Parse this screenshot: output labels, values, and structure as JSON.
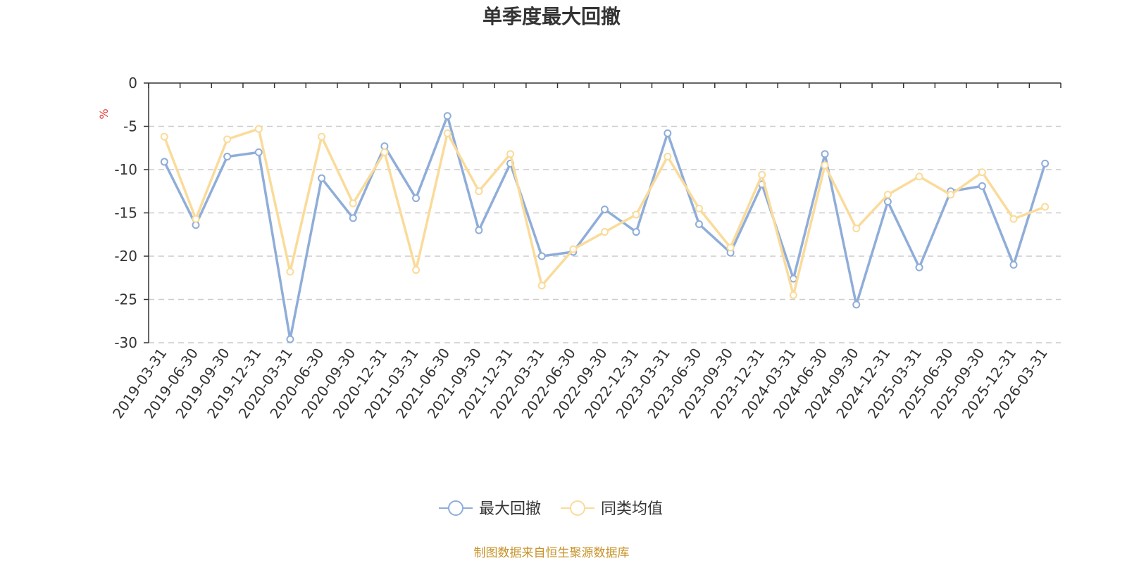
{
  "chart_data": {
    "type": "line",
    "title": "单季度最大回撤",
    "ylabel": "%",
    "ylim": [
      -30,
      0
    ],
    "yticks": [
      0,
      -5,
      -10,
      -15,
      -20,
      -25,
      -30
    ],
    "grid": true,
    "legend_position": "bottom",
    "categories": [
      "2019-03-31",
      "2019-06-30",
      "2019-09-30",
      "2019-12-31",
      "2020-03-31",
      "2020-06-30",
      "2020-09-30",
      "2020-12-31",
      "2021-03-31",
      "2021-06-30",
      "2021-09-30",
      "2021-12-31",
      "2022-03-31",
      "2022-06-30",
      "2022-09-30",
      "2022-12-31",
      "2023-03-31",
      "2023-06-30",
      "2023-09-30",
      "2023-12-31",
      "2024-03-31",
      "2024-06-30",
      "2024-09-30",
      "2024-12-31",
      "2025-03-31",
      "2025-06-30",
      "2025-09-30",
      "2025-12-31",
      "2026-03-31"
    ],
    "series": [
      {
        "name": "最大回撤",
        "color": "#8fadd9",
        "values": [
          -9.1,
          -16.4,
          -8.5,
          -8.0,
          -29.6,
          -11.0,
          -15.6,
          -7.3,
          -13.3,
          -3.8,
          -17.0,
          -9.3,
          -20.0,
          -19.5,
          -14.6,
          -17.2,
          -5.8,
          -16.3,
          -19.6,
          -11.7,
          -22.6,
          -8.2,
          -25.6,
          -13.7,
          -21.3,
          -12.5,
          -11.9,
          -21.0,
          -9.3
        ]
      },
      {
        "name": "同类均值",
        "color": "#fadb9a",
        "values": [
          -6.2,
          -15.7,
          -6.5,
          -5.3,
          -21.8,
          -6.2,
          -13.9,
          -8.0,
          -21.6,
          -5.8,
          -12.5,
          -8.2,
          -23.4,
          -19.2,
          -17.2,
          -15.2,
          -8.5,
          -14.5,
          -19.0,
          -10.6,
          -24.5,
          -9.5,
          -16.8,
          -12.9,
          -10.8,
          -12.9,
          -10.3,
          -15.7,
          -14.3
        ]
      }
    ]
  },
  "footer": {
    "source": "制图数据来自恒生聚源数据库",
    "source_color": "#c8932a"
  },
  "unit_color": "#e8312f"
}
